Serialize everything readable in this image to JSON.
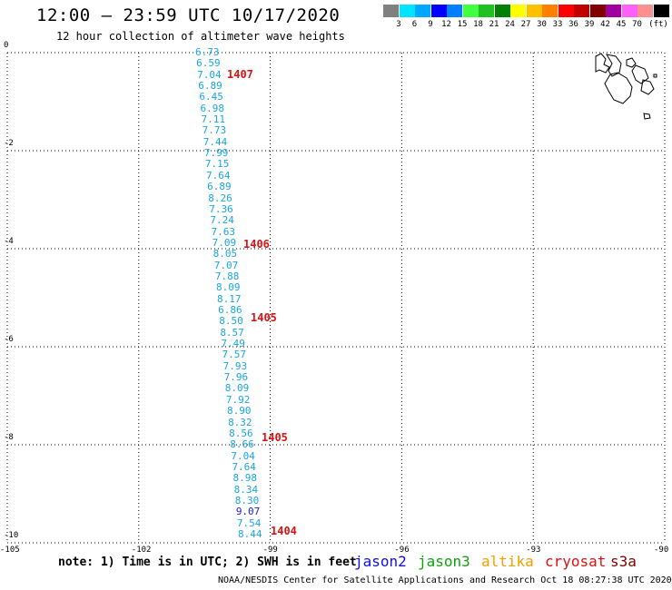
{
  "header": {
    "title": "12:00 – 23:59 UTC 10/17/2020",
    "subtitle": "12 hour collection of altimeter wave heights"
  },
  "colorbar": {
    "unit": "(ft)",
    "colors": [
      "#808080",
      "#00e5ff",
      "#00a8ff",
      "#0000ff",
      "#0080ff",
      "#40ff40",
      "#20c020",
      "#008000",
      "#ffff00",
      "#ffc000",
      "#ff8000",
      "#ff0000",
      "#c00000",
      "#800000",
      "#a000a0",
      "#ff60ff",
      "#ff9090",
      "#000000"
    ],
    "labels": [
      "3",
      "6",
      "9",
      "12",
      "15",
      "18",
      "21",
      "24",
      "27",
      "30",
      "33",
      "36",
      "39",
      "42",
      "45",
      "70"
    ]
  },
  "chart_data": {
    "type": "scatter",
    "title": "12:00 – 23:59 UTC 10/17/2020",
    "xlim": [
      -105,
      -90
    ],
    "ylim": [
      -10,
      0
    ],
    "x_ticks": [
      "-105",
      "-102",
      "-99",
      "-96",
      "-93",
      "-90"
    ],
    "y_ticks": [
      "0",
      "-2",
      "-4",
      "-6",
      "-8",
      "-10"
    ],
    "wave_heights_ft": [
      "6.73",
      "6.59",
      "7.04",
      "6.89",
      "6.45",
      "6.98",
      "7.11",
      "7.73",
      "7.44",
      "7.99",
      "7.15",
      "7.64",
      "6.89",
      "8.26",
      "7.36",
      "7.24",
      "7.63",
      "7.09",
      "8.05",
      "7.07",
      "7.88",
      "8.09",
      "8.17",
      "6.86",
      "8.50",
      "8.57",
      "7.49",
      "7.57",
      "7.93",
      "7.96",
      "8.09",
      "7.92",
      "8.90",
      "8.32",
      "8.56",
      "8.66",
      "7.04",
      "7.64",
      "8.98",
      "8.34",
      "8.30",
      "9.07",
      "7.54",
      "8.44"
    ],
    "cycles": [
      {
        "label": "1407",
        "lat": -0.45
      },
      {
        "label": "1406",
        "lat": -3.9
      },
      {
        "label": "1405",
        "lat": -5.4
      },
      {
        "label": "1405",
        "lat": -7.85
      },
      {
        "label": "1404",
        "lat": -9.75
      }
    ]
  },
  "legend": {
    "note": "note: 1) Time is in UTC; 2) SWH is in feet",
    "satellites": [
      {
        "name": "jason2",
        "color": "#1010e0"
      },
      {
        "name": "jason3",
        "color": "#10a010"
      },
      {
        "name": "altika",
        "color": "#f0a000"
      },
      {
        "name": "cryosat",
        "color": "#e01010"
      },
      {
        "name": "s3a",
        "color": "#800000"
      }
    ]
  },
  "footer": "NOAA/NESDIS Center for Satellite Applications and Research    Oct 18 08:27:38 UTC 2020"
}
